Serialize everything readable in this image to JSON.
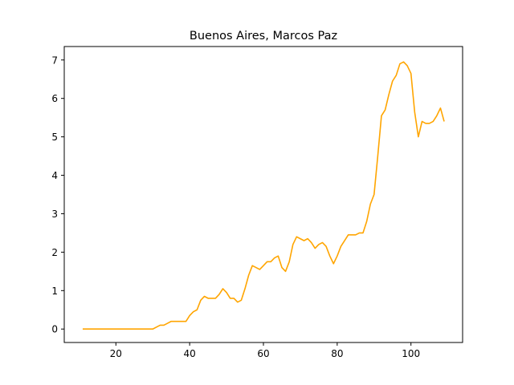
{
  "chart_data": {
    "type": "line",
    "title": "Buenos Aires, Marcos Paz",
    "xlabel": "",
    "ylabel": "",
    "xlim": [
      6,
      114
    ],
    "ylim": [
      -0.35,
      7.35
    ],
    "xticks": [
      20,
      40,
      60,
      80,
      100
    ],
    "yticks": [
      0,
      1,
      2,
      3,
      4,
      5,
      6,
      7
    ],
    "grid": false,
    "legend": "none",
    "series": [
      {
        "color": "#ffa500",
        "x": [
          11,
          12,
          13,
          14,
          15,
          16,
          17,
          18,
          19,
          20,
          21,
          22,
          23,
          24,
          25,
          26,
          27,
          28,
          29,
          30,
          31,
          32,
          33,
          34,
          35,
          36,
          37,
          38,
          39,
          40,
          41,
          42,
          43,
          44,
          45,
          46,
          47,
          48,
          49,
          50,
          51,
          52,
          53,
          54,
          55,
          56,
          57,
          58,
          59,
          60,
          61,
          62,
          63,
          64,
          65,
          66,
          67,
          68,
          69,
          70,
          71,
          72,
          73,
          74,
          75,
          76,
          77,
          78,
          79,
          80,
          81,
          82,
          83,
          84,
          85,
          86,
          87,
          88,
          89,
          90,
          91,
          92,
          93,
          94,
          95,
          96,
          97,
          98,
          99,
          100,
          101,
          102,
          103,
          104,
          105,
          106,
          107,
          108,
          109
        ],
        "y": [
          0,
          0,
          0,
          0,
          0,
          0,
          0,
          0,
          0,
          0,
          0,
          0,
          0,
          0,
          0,
          0,
          0,
          0,
          0,
          0,
          0.05,
          0.1,
          0.1,
          0.15,
          0.2,
          0.2,
          0.2,
          0.2,
          0.2,
          0.35,
          0.45,
          0.5,
          0.75,
          0.85,
          0.8,
          0.8,
          0.8,
          0.9,
          1.05,
          0.95,
          0.8,
          0.8,
          0.7,
          0.75,
          1.05,
          1.4,
          1.65,
          1.6,
          1.55,
          1.65,
          1.75,
          1.75,
          1.85,
          1.9,
          1.6,
          1.5,
          1.75,
          2.2,
          2.4,
          2.35,
          2.3,
          2.35,
          2.25,
          2.1,
          2.2,
          2.25,
          2.15,
          1.9,
          1.7,
          1.9,
          2.15,
          2.3,
          2.45,
          2.45,
          2.45,
          2.5,
          2.5,
          2.8,
          3.25,
          3.5,
          4.5,
          5.55,
          5.7,
          6.1,
          6.45,
          6.6,
          6.9,
          6.95,
          6.85,
          6.65,
          5.65,
          5.0,
          5.4,
          5.35,
          5.35,
          5.4,
          5.55,
          5.75,
          5.4
        ]
      }
    ]
  }
}
